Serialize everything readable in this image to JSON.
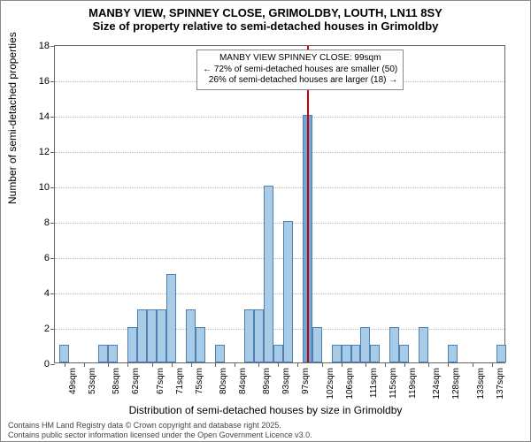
{
  "title": {
    "main": "MANBY VIEW, SPINNEY CLOSE, GRIMOLDBY, LOUTH, LN11 8SY",
    "sub": "Size of property relative to semi-detached houses in Grimoldby"
  },
  "ylabel": "Number of semi-detached properties",
  "xlabel": "Distribution of semi-detached houses by size in Grimoldby",
  "footer": {
    "line1": "Contains HM Land Registry data © Crown copyright and database right 2025.",
    "line2": "Contains public sector information licensed under the Open Government Licence v3.0."
  },
  "chart": {
    "type": "histogram",
    "ylim": [
      0,
      18
    ],
    "ytick_step": 2,
    "grid": true,
    "grid_color": "#bbbbbb",
    "bar_fill": "#a8cbe8",
    "bar_fill_highlight": "#6fa8d8",
    "bar_stroke": "#5080b0",
    "background_color": "#ffffff",
    "border_color": "#666666",
    "x_start": 47,
    "x_end": 140,
    "bar_step": 2,
    "x_ticks": [
      49,
      53,
      58,
      62,
      67,
      71,
      75,
      80,
      84,
      89,
      93,
      97,
      102,
      106,
      111,
      115,
      119,
      124,
      128,
      133,
      137
    ],
    "x_tick_suffix": "sqm",
    "bars": [
      {
        "x": 48,
        "v": 1,
        "hl": false
      },
      {
        "x": 56,
        "v": 1,
        "hl": false
      },
      {
        "x": 58,
        "v": 1,
        "hl": false
      },
      {
        "x": 62,
        "v": 2,
        "hl": false
      },
      {
        "x": 64,
        "v": 3,
        "hl": false
      },
      {
        "x": 66,
        "v": 3,
        "hl": false
      },
      {
        "x": 68,
        "v": 3,
        "hl": false
      },
      {
        "x": 70,
        "v": 5,
        "hl": false
      },
      {
        "x": 74,
        "v": 3,
        "hl": false
      },
      {
        "x": 76,
        "v": 2,
        "hl": false
      },
      {
        "x": 80,
        "v": 1,
        "hl": false
      },
      {
        "x": 86,
        "v": 3,
        "hl": false
      },
      {
        "x": 88,
        "v": 3,
        "hl": false
      },
      {
        "x": 90,
        "v": 10,
        "hl": false
      },
      {
        "x": 92,
        "v": 1,
        "hl": false
      },
      {
        "x": 94,
        "v": 8,
        "hl": false
      },
      {
        "x": 98,
        "v": 14,
        "hl": true
      },
      {
        "x": 100,
        "v": 2,
        "hl": false
      },
      {
        "x": 104,
        "v": 1,
        "hl": false
      },
      {
        "x": 106,
        "v": 1,
        "hl": false
      },
      {
        "x": 108,
        "v": 1,
        "hl": false
      },
      {
        "x": 110,
        "v": 2,
        "hl": false
      },
      {
        "x": 112,
        "v": 1,
        "hl": false
      },
      {
        "x": 116,
        "v": 2,
        "hl": false
      },
      {
        "x": 118,
        "v": 1,
        "hl": false
      },
      {
        "x": 122,
        "v": 2,
        "hl": false
      },
      {
        "x": 128,
        "v": 1,
        "hl": false
      },
      {
        "x": 138,
        "v": 1,
        "hl": false
      }
    ],
    "refline": {
      "x": 99,
      "color": "#cc0000"
    },
    "annotation": {
      "line1": "MANBY VIEW SPINNEY CLOSE: 99sqm",
      "line2": "← 72% of semi-detached houses are smaller (50)",
      "line3": "26% of semi-detached houses are larger (18) →"
    }
  }
}
